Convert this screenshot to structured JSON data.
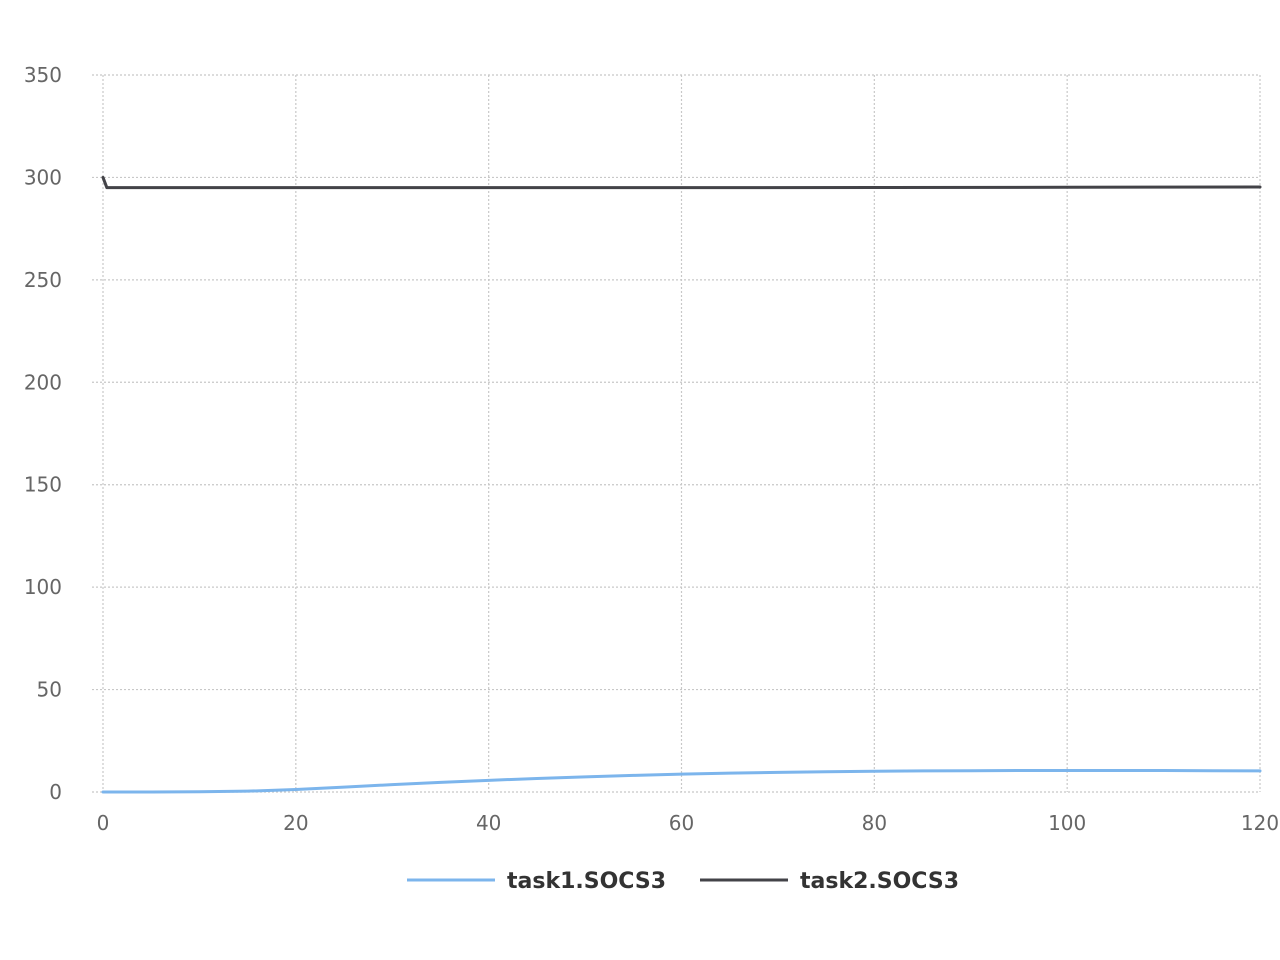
{
  "chart_data": {
    "type": "line",
    "title": "",
    "xlabel": "",
    "ylabel": "",
    "xlim": [
      0,
      120
    ],
    "ylim": [
      0,
      350
    ],
    "x_ticks": [
      "0",
      "20",
      "40",
      "60",
      "80",
      "100",
      "120"
    ],
    "y_ticks": [
      "0",
      "50",
      "100",
      "150",
      "200",
      "250",
      "300",
      "350"
    ],
    "grid": true,
    "legend_position": "bottom-center",
    "series": [
      {
        "name": "task1.SOCS3",
        "color": "#7cb5ec",
        "x": [
          0,
          5,
          10,
          15,
          20,
          25,
          30,
          35,
          40,
          45,
          50,
          55,
          60,
          65,
          70,
          75,
          80,
          85,
          90,
          95,
          100,
          105,
          110,
          115,
          120
        ],
        "y": [
          0,
          0,
          0.1,
          0.4,
          1.2,
          2.4,
          3.6,
          4.7,
          5.7,
          6.6,
          7.4,
          8.1,
          8.7,
          9.2,
          9.6,
          9.9,
          10.1,
          10.3,
          10.4,
          10.5,
          10.5,
          10.5,
          10.5,
          10.4,
          10.3
        ]
      },
      {
        "name": "task2.SOCS3",
        "color": "#434348",
        "x": [
          0,
          0.4,
          10,
          20,
          40,
          60,
          80,
          100,
          120
        ],
        "y": [
          300,
          295,
          295,
          295,
          295,
          295,
          295.1,
          295.2,
          295.3
        ]
      }
    ]
  }
}
